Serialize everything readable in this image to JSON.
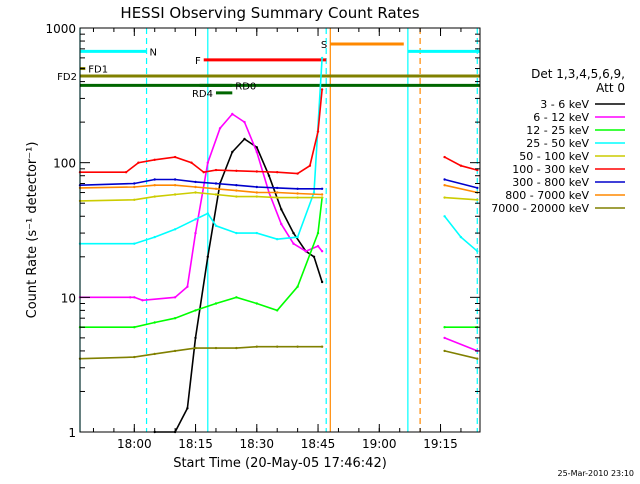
{
  "chart_data": {
    "type": "line",
    "title": "HESSI Observing Summary Count Rates",
    "xlabel": "Start Time (20-May-05 17:46:42)",
    "ylabel": "Count Rate (s⁻¹ detector⁻¹)",
    "x_unit": "UT",
    "xlim": [
      "17:46:42",
      "19:24:40"
    ],
    "ylim": [
      1,
      1000
    ],
    "yscale": "log",
    "x_ticks": [
      "18:00",
      "18:15",
      "18:30",
      "18:45",
      "19:00",
      "19:15"
    ],
    "y_ticks": [
      "1",
      "10",
      "100",
      "1000"
    ],
    "legend": {
      "title_lines": [
        "Det 1,3,4,5,6,9,",
        "Att 0"
      ],
      "position": "right"
    },
    "footer": "25-Mar-2010 23:10",
    "series": [
      {
        "name": "3 - 6 keV",
        "color": "#000000",
        "x": [
          "18:05",
          "18:10",
          "18:13",
          "18:15",
          "18:18",
          "18:21",
          "18:24",
          "18:27",
          "18:30",
          "18:33",
          "18:36",
          "18:39",
          "18:42",
          "18:44",
          "18:46"
        ],
        "y": [
          1,
          1,
          1.5,
          5,
          20,
          70,
          120,
          150,
          130,
          80,
          45,
          30,
          22,
          20,
          13
        ]
      },
      {
        "name": "6 - 12 keV",
        "color": "#ff00ff",
        "x": [
          "17:46:42",
          "17:59",
          "18:00",
          "18:02",
          "18:10",
          "18:13",
          "18:15",
          "18:18",
          "18:21",
          "18:24",
          "18:27",
          "18:30",
          "18:33",
          "18:36",
          "18:39",
          "18:42",
          "18:45",
          "18:46",
          "19:16",
          "19:24"
        ],
        "y": [
          10,
          10,
          10,
          9.5,
          10,
          12,
          30,
          100,
          180,
          230,
          200,
          120,
          60,
          35,
          25,
          22,
          24,
          22,
          5,
          4
        ]
      },
      {
        "name": "12 - 25 keV",
        "color": "#00ff00",
        "x": [
          "17:46:42",
          "18:00",
          "18:05",
          "18:10",
          "18:15",
          "18:20",
          "18:25",
          "18:30",
          "18:35",
          "18:40",
          "18:45",
          "18:46",
          "19:16",
          "19:24"
        ],
        "y": [
          6,
          6,
          6.5,
          7,
          8,
          9,
          10,
          9,
          8,
          12,
          30,
          55,
          6,
          6
        ]
      },
      {
        "name": "25 - 50 keV",
        "color": "#00ffff",
        "x": [
          "17:46:42",
          "18:00",
          "18:05",
          "18:10",
          "18:15",
          "18:18",
          "18:20",
          "18:25",
          "18:30",
          "18:35",
          "18:40",
          "18:44",
          "18:46",
          "19:16",
          "19:20",
          "19:24"
        ],
        "y": [
          25,
          25,
          28,
          32,
          38,
          42,
          34,
          30,
          30,
          27,
          28,
          60,
          600,
          40,
          28,
          22
        ]
      },
      {
        "name": "50 - 100 keV",
        "color": "#cccc00",
        "x": [
          "17:46:42",
          "18:00",
          "18:05",
          "18:10",
          "18:15",
          "18:20",
          "18:25",
          "18:30",
          "18:35",
          "18:40",
          "18:46",
          "19:16",
          "19:24"
        ],
        "y": [
          52,
          53,
          56,
          58,
          60,
          58,
          56,
          56,
          55,
          55,
          55,
          55,
          53
        ]
      },
      {
        "name": "100 - 300 keV",
        "color": "#ff0000",
        "x": [
          "17:46:42",
          "17:58",
          "18:01",
          "18:05",
          "18:10",
          "18:14",
          "18:17",
          "18:20",
          "18:25",
          "18:30",
          "18:35",
          "18:40",
          "18:43",
          "18:45",
          "18:46",
          "19:16",
          "19:20",
          "19:24"
        ],
        "y": [
          85,
          85,
          100,
          105,
          110,
          100,
          85,
          88,
          87,
          86,
          85,
          83,
          95,
          170,
          350,
          110,
          95,
          88
        ]
      },
      {
        "name": "300 - 800 keV",
        "color": "#0000cc",
        "x": [
          "17:46:42",
          "18:00",
          "18:05",
          "18:10",
          "18:15",
          "18:20",
          "18:25",
          "18:30",
          "18:35",
          "18:40",
          "18:46",
          "19:16",
          "19:24"
        ],
        "y": [
          68,
          70,
          75,
          75,
          72,
          70,
          68,
          66,
          65,
          64,
          64,
          75,
          65
        ]
      },
      {
        "name": "800 - 7000 keV",
        "color": "#ff8800",
        "x": [
          "17:46:42",
          "18:00",
          "18:05",
          "18:10",
          "18:15",
          "18:20",
          "18:25",
          "18:30",
          "18:35",
          "18:40",
          "18:46",
          "19:16",
          "19:24"
        ],
        "y": [
          65,
          66,
          68,
          68,
          66,
          64,
          62,
          60,
          60,
          59,
          58,
          68,
          60
        ]
      },
      {
        "name": "7000 - 20000 keV",
        "color": "#808000",
        "x": [
          "17:46:42",
          "18:00",
          "18:05",
          "18:10",
          "18:15",
          "18:20",
          "18:25",
          "18:30",
          "18:35",
          "18:40",
          "18:46",
          "19:16",
          "19:24"
        ],
        "y": [
          3.5,
          3.6,
          3.8,
          4,
          4.2,
          4.2,
          4.2,
          4.3,
          4.3,
          4.3,
          4.3,
          4,
          3.5
        ]
      }
    ],
    "flag_bars": [
      {
        "label": "N",
        "color": "#00ffff",
        "x_start": "17:46:42",
        "x_end": "18:03",
        "y": 670,
        "labels_at": "end"
      },
      {
        "label": "N",
        "color": "#00ffff",
        "x_start": "19:07",
        "x_end": "19:24:40",
        "y": 670,
        "labels_at": "none"
      },
      {
        "label": "F",
        "color": "#ff0000",
        "x_start": "18:17",
        "x_end": "18:47",
        "y": 580,
        "labels_at": "start"
      },
      {
        "label": "S",
        "color": "#ff8800",
        "x_start": "18:48",
        "x_end": "19:06",
        "y": 760,
        "labels_at": "start"
      },
      {
        "label": "FD1",
        "color": "#808000",
        "x_start": "17:46:42",
        "x_end": "17:48",
        "y": 500,
        "labels_at": "end"
      },
      {
        "label": "FD2",
        "color": "#808000",
        "x_start": "17:46:42",
        "x_end": "19:24:40",
        "y": 440,
        "labels_at": "start"
      },
      {
        "label": "RD0",
        "color": "#006600",
        "x_start": "17:46:42",
        "x_end": "19:24:40",
        "y": 375,
        "labels_at": "none"
      },
      {
        "label": "RD0",
        "color": "#006600",
        "x_start": "18:16",
        "x_end": "18:24",
        "y": 375,
        "labels_at": "end"
      },
      {
        "label": "RD4",
        "color": "#006600",
        "x_start": "18:20",
        "x_end": "18:24",
        "y": 330,
        "labels_at": "start"
      }
    ],
    "vertical_markers": [
      {
        "x": "17:46:42",
        "color": "#00ffff",
        "style": "solid"
      },
      {
        "x": "18:03",
        "color": "#00ffff",
        "style": "dashed"
      },
      {
        "x": "18:18",
        "color": "#00ffff",
        "style": "solid"
      },
      {
        "x": "18:47",
        "color": "#00ffff",
        "style": "dashed"
      },
      {
        "x": "18:48",
        "color": "#ff8800",
        "style": "solid"
      },
      {
        "x": "19:07",
        "color": "#00ffff",
        "style": "solid"
      },
      {
        "x": "19:10",
        "color": "#ff8800",
        "style": "dashed"
      },
      {
        "x": "19:24",
        "color": "#00ffff",
        "style": "dashed"
      }
    ],
    "gaps": [
      {
        "from": "18:47",
        "to": "19:16"
      }
    ]
  }
}
